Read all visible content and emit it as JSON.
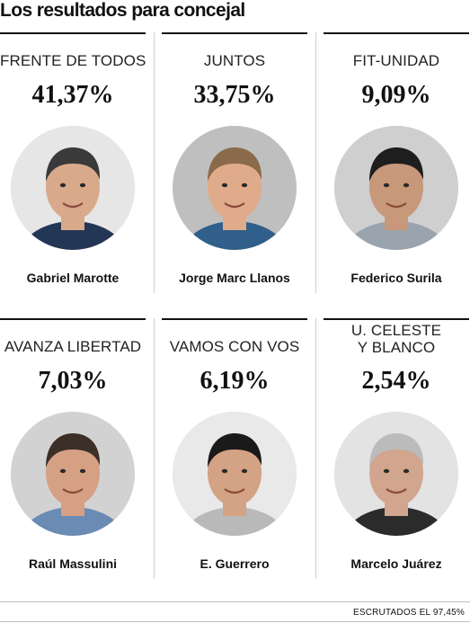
{
  "title": "Los resultados para concejal",
  "results": [
    {
      "party": "FRENTE DE TODOS",
      "percent": "41,37%",
      "candidate": "Gabriel Marotte",
      "portrait": {
        "skin": "#d9a98c",
        "hair": "#3a3a3a",
        "shirt": "#243656",
        "bg": "#e6e6e6"
      }
    },
    {
      "party": "JUNTOS",
      "percent": "33,75%",
      "candidate": "Jorge Marc Llanos",
      "portrait": {
        "skin": "#e0ab8a",
        "hair": "#8a6a4a",
        "shirt": "#2f5f8a",
        "bg": "#bfbfbf"
      }
    },
    {
      "party": "FIT-UNIDAD",
      "percent": "9,09%",
      "candidate": "Federico Surila",
      "portrait": {
        "skin": "#c8987a",
        "hair": "#1e1e1e",
        "shirt": "#9aa4ae",
        "bg": "#cfcfcf"
      }
    },
    {
      "party": "AVANZA LIBERTAD",
      "percent": "7,03%",
      "candidate": "Raúl Massulini",
      "portrait": {
        "skin": "#d6a084",
        "hair": "#3b2f28",
        "shirt": "#6a8bb4",
        "bg": "#d2d2d2"
      }
    },
    {
      "party": "VAMOS CON VOS",
      "percent": "6,19%",
      "candidate": "E. Guerrero",
      "portrait": {
        "skin": "#d4a285",
        "hair": "#1a1a1a",
        "shirt": "#b9b9b9",
        "bg": "#e9e9e9"
      }
    },
    {
      "party": "U. CELESTE Y BLANCO",
      "percent": "2,54%",
      "candidate": "Marcelo Juárez",
      "portrait": {
        "skin": "#d1a58e",
        "hair": "#bbbbbb",
        "shirt": "#2b2b2b",
        "bg": "#e3e3e3"
      }
    }
  ],
  "footnote": "ESCRUTADOS EL 97,45%"
}
